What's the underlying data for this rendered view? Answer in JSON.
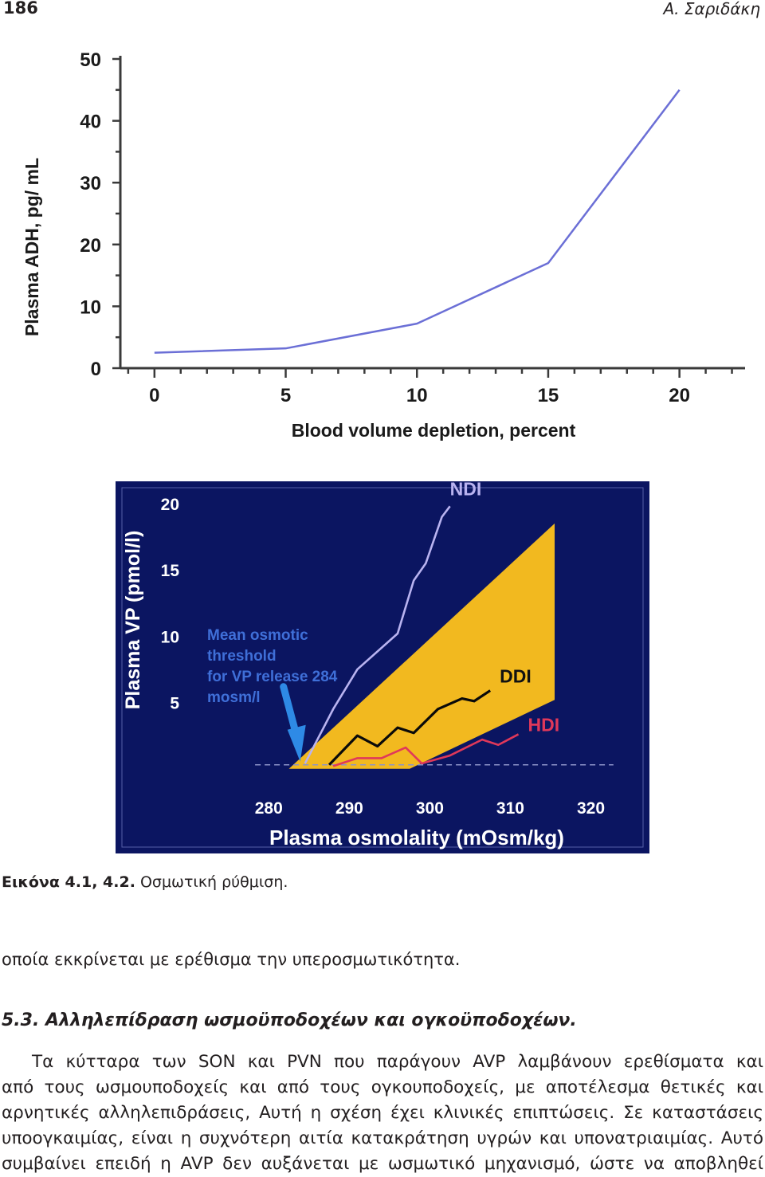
{
  "header": {
    "page_number": "186",
    "running_head": "Α. Σαριδάκη"
  },
  "figure1": {
    "ylabel": "Plasma ADH, pg/ mL",
    "xlabel": "Blood volume depletion, percent",
    "chart_data": {
      "type": "line",
      "x": [
        0,
        5,
        10,
        15,
        20
      ],
      "series": [
        {
          "values": [
            2.5,
            3.2,
            7.2,
            17,
            45
          ]
        }
      ],
      "xticks": [
        "0",
        "5",
        "10",
        "15",
        "20"
      ],
      "yticks": [
        "0",
        "10",
        "20",
        "30",
        "40",
        "50"
      ],
      "xlim": [
        -1.3,
        22.5
      ],
      "ylim": [
        0,
        50
      ],
      "grid": false,
      "line_color": "#6b6fd6"
    }
  },
  "figure2": {
    "ylabel": "Plasma VP (pmol/l)",
    "xlabel": "Plasma osmolality (mOsm/kg)",
    "annotation": [
      "Mean osmotic",
      "threshold",
      "for VP release 284",
      "mosm/l"
    ],
    "chart_data": {
      "type": "line",
      "xticks": [
        "280",
        "290",
        "300",
        "310",
        "320"
      ],
      "yticks": [
        "5",
        "10",
        "15",
        "20"
      ],
      "xlim": [
        277.3,
        324.8
      ],
      "ylim": [
        -1.4,
        21.2
      ],
      "threshold_level": 0.3,
      "normal_range_band": {
        "polygon": [
          [
            282.5,
            0
          ],
          [
            297.5,
            0
          ],
          [
            315.5,
            5.2
          ],
          [
            315.5,
            18.5
          ]
        ],
        "color": "#f2b91f"
      },
      "series": [
        {
          "name": "NDI",
          "color": "#b9b3f0",
          "x": [
            284.5,
            288,
            291,
            296,
            298,
            299.5,
            301.5,
            302.5
          ],
          "y": [
            0.4,
            4.5,
            7.5,
            10.2,
            14.2,
            15.5,
            19,
            19.8
          ]
        },
        {
          "name": "DDI",
          "color": "#0a0a0a",
          "x": [
            287.5,
            291,
            293.5,
            296,
            298,
            301,
            304,
            305.5,
            307.5
          ],
          "y": [
            0.3,
            2.5,
            1.7,
            3.1,
            2.7,
            4.5,
            5.3,
            5.1,
            5.9
          ]
        },
        {
          "name": "HDI",
          "color": "#e0385a",
          "x": [
            288,
            291,
            294,
            297,
            299,
            302.5,
            306.5,
            308.5,
            311
          ],
          "y": [
            0.2,
            0.8,
            0.8,
            1.6,
            0.4,
            1,
            2.2,
            1.8,
            2.6
          ]
        }
      ]
    }
  },
  "caption": {
    "label": "Εικόνα 4.1, 4.2.",
    "text": " Οσμωτική ρύθμιση."
  },
  "body": {
    "para1": "οποία εκκρίνεται με ερέθισμα την υπεροσμωτικότητα.",
    "heading": "5.3. Αλληλεπίδραση ωσμοϋποδοχέων και ογκοϋποδοχέων.",
    "lines": [
      "Τα κύτταρα των SON και PVN που παράγουν AVP λαμβάνουν ερεθίσματα και",
      "από τους ωσμουποδοχείς και από τους ογκουποδοχείς, με αποτέλεσμα θετικές και",
      "αρνητικές αλληλεπιδράσεις, Αυτή η σχέση έχει κλινικές επιπτώσεις. Σε καταστάσεις",
      "υποογκαιμίας, είναι η συχνότερη αιτία κατακράτηση υγρών και υπονατριαιμίας. Αυτό",
      "συμβαίνει επειδή η AVP δεν αυξάνεται με ωσμωτικό μηχανισμό, ώστε να αποβληθεί"
    ]
  }
}
